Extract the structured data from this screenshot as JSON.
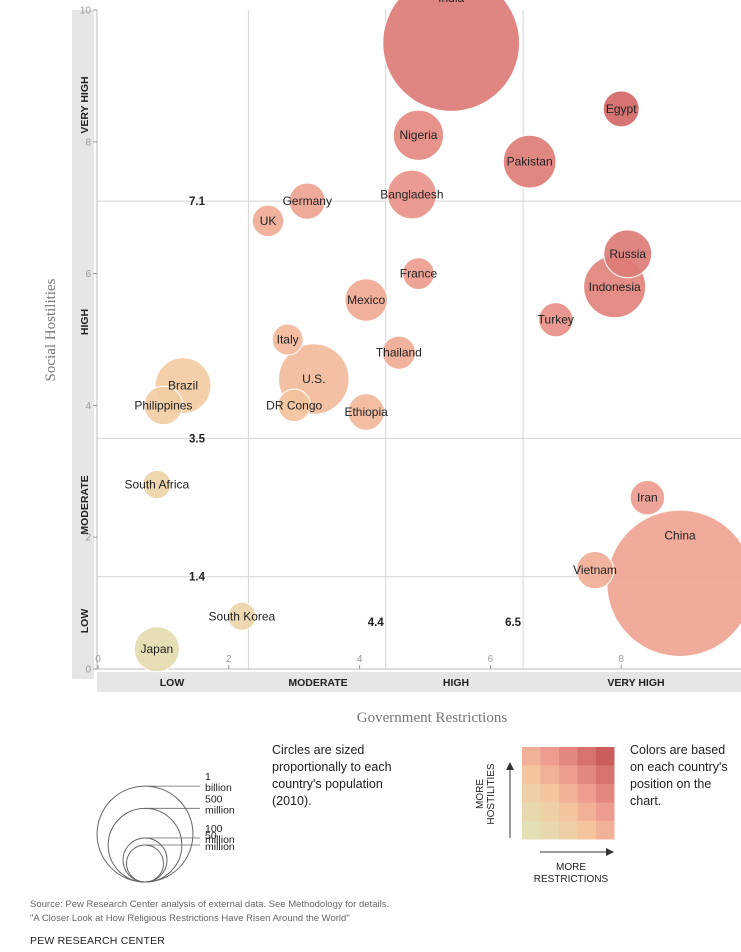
{
  "chart_data": {
    "type": "scatter",
    "xlabel": "Government Restrictions",
    "ylabel": "Social Hostilities",
    "xlim": [
      0,
      10
    ],
    "ylim": [
      0,
      10
    ],
    "x_ticks": [
      0,
      2,
      4,
      6,
      8
    ],
    "y_ticks": [
      0,
      2,
      4,
      6,
      8,
      10
    ],
    "y_tick_labels": [
      "0",
      "2",
      "4",
      "6",
      "8",
      "10"
    ],
    "x_tick_labels": [
      "0",
      "2",
      "4",
      "6",
      "8"
    ],
    "x_thresholds": [
      2.3,
      4.4,
      6.5
    ],
    "y_thresholds": [
      1.4,
      3.5,
      7.1
    ],
    "x_threshold_labels": [
      "4.4",
      "6.5"
    ],
    "y_threshold_labels": [
      "1.4",
      "3.5",
      "7.1"
    ],
    "x_category_labels": [
      "LOW",
      "MODERATE",
      "HIGH",
      "VERY HIGH"
    ],
    "y_category_labels": [
      "LOW",
      "MODERATE",
      "HIGH",
      "VERY HIGH"
    ],
    "points": [
      {
        "name": "India",
        "x": 5.4,
        "y": 9.5,
        "pop": 1170
      },
      {
        "name": "China",
        "x": 8.9,
        "y": 1.3,
        "pop": 1340
      },
      {
        "name": "Egypt",
        "x": 8.0,
        "y": 8.5,
        "pop": 81
      },
      {
        "name": "Nigeria",
        "x": 4.9,
        "y": 8.1,
        "pop": 158
      },
      {
        "name": "Pakistan",
        "x": 6.6,
        "y": 7.7,
        "pop": 174
      },
      {
        "name": "Bangladesh",
        "x": 4.8,
        "y": 7.2,
        "pop": 149
      },
      {
        "name": "Germany",
        "x": 3.2,
        "y": 7.1,
        "pop": 82
      },
      {
        "name": "UK",
        "x": 2.6,
        "y": 6.8,
        "pop": 62
      },
      {
        "name": "Russia",
        "x": 8.1,
        "y": 6.3,
        "pop": 143
      },
      {
        "name": "Indonesia",
        "x": 7.9,
        "y": 5.8,
        "pop": 240
      },
      {
        "name": "France",
        "x": 4.9,
        "y": 6.0,
        "pop": 63
      },
      {
        "name": "Mexico",
        "x": 4.1,
        "y": 5.6,
        "pop": 113
      },
      {
        "name": "Turkey",
        "x": 7.0,
        "y": 5.3,
        "pop": 73
      },
      {
        "name": "Italy",
        "x": 2.9,
        "y": 5.0,
        "pop": 60
      },
      {
        "name": "Thailand",
        "x": 4.6,
        "y": 4.8,
        "pop": 69
      },
      {
        "name": "U.S.",
        "x": 3.3,
        "y": 4.4,
        "pop": 310
      },
      {
        "name": "Brazil",
        "x": 1.3,
        "y": 4.3,
        "pop": 195
      },
      {
        "name": "Philippines",
        "x": 1.0,
        "y": 4.0,
        "pop": 93
      },
      {
        "name": "DR Congo",
        "x": 3.0,
        "y": 4.0,
        "pop": 66
      },
      {
        "name": "Ethiopia",
        "x": 4.1,
        "y": 3.9,
        "pop": 83
      },
      {
        "name": "South Africa",
        "x": 0.9,
        "y": 2.8,
        "pop": 50
      },
      {
        "name": "Iran",
        "x": 8.4,
        "y": 2.6,
        "pop": 74
      },
      {
        "name": "Vietnam",
        "x": 7.6,
        "y": 1.5,
        "pop": 87
      },
      {
        "name": "South Korea",
        "x": 2.2,
        "y": 0.8,
        "pop": 49
      },
      {
        "name": "Japan",
        "x": 0.9,
        "y": 0.3,
        "pop": 127
      }
    ]
  },
  "legend": {
    "size_labels": [
      {
        "label": "1\nbillion",
        "pop": 1000
      },
      {
        "label": "500\nmillion",
        "pop": 500
      },
      {
        "label": "100\nmillion",
        "pop": 100
      },
      {
        "label": "50\nmillion",
        "pop": 50
      }
    ],
    "size_note": "Circles are sized proportionally to each country's population (2010).",
    "color_note": "Colors are based on each country's position on the chart.",
    "color_axis_y": "MORE\nHOSTILITIES",
    "color_axis_x": "MORE\nRESTRICTIONS"
  },
  "footer": {
    "source_line1": "Source: Pew Research Center analysis of external data. See Methodology for details.",
    "source_line2": "\"A Closer Look at How Religious Restrictions Have Risen Around the World\"",
    "brand": "PEW RESEARCH CENTER"
  }
}
